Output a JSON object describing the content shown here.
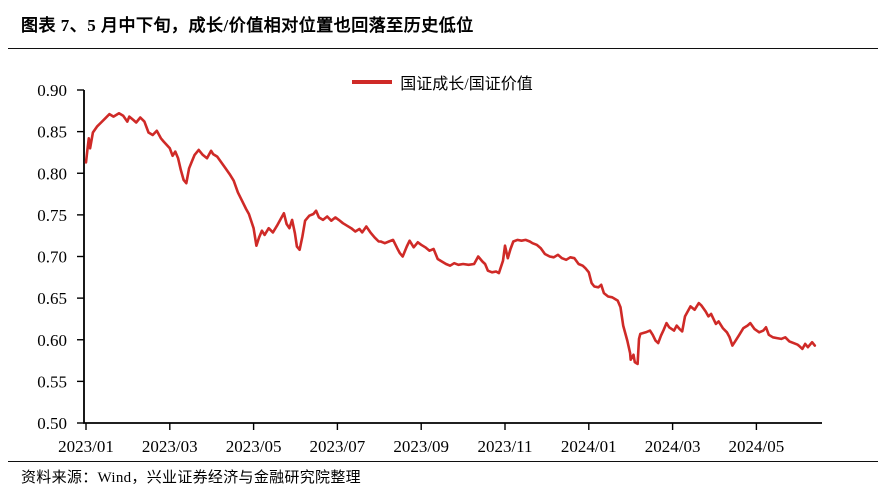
{
  "header": {
    "title": "图表 7、5 月中下旬，成长/价值相对位置也回落至历史低位"
  },
  "footer": {
    "source": "资料来源：Wind，兴业证券经济与金融研究院整理"
  },
  "chart_data": {
    "type": "line",
    "title": "",
    "xlabel": "",
    "ylabel": "",
    "grid": false,
    "legend_position": "top-center",
    "ylim": [
      0.5,
      0.9
    ],
    "y_ticks": [
      "0.90",
      "0.85",
      "0.80",
      "0.75",
      "0.70",
      "0.65",
      "0.60",
      "0.55",
      "0.50"
    ],
    "x_ticks": [
      "2023/01",
      "2023/03",
      "2023/05",
      "2023/07",
      "2023/09",
      "2023/11",
      "2024/01",
      "2024/03",
      "2024/05"
    ],
    "axis_color": "#000000",
    "series": [
      {
        "name": "国证成长/国证价值",
        "color": "#cf2a27",
        "points": [
          [
            "2023-01-01",
            0.813
          ],
          [
            "2023-01-02",
            0.828
          ],
          [
            "2023-01-03",
            0.842
          ],
          [
            "2023-01-04",
            0.83
          ],
          [
            "2023-01-06",
            0.849
          ],
          [
            "2023-01-09",
            0.856
          ],
          [
            "2023-01-12",
            0.861
          ],
          [
            "2023-01-15",
            0.866
          ],
          [
            "2023-01-18",
            0.871
          ],
          [
            "2023-01-21",
            0.868
          ],
          [
            "2023-01-25",
            0.872
          ],
          [
            "2023-01-28",
            0.869
          ],
          [
            "2023-01-31",
            0.862
          ],
          [
            "2023-02-02",
            0.868
          ],
          [
            "2023-02-05",
            0.864
          ],
          [
            "2023-02-07",
            0.861
          ],
          [
            "2023-02-10",
            0.867
          ],
          [
            "2023-02-13",
            0.862
          ],
          [
            "2023-02-16",
            0.849
          ],
          [
            "2023-02-19",
            0.846
          ],
          [
            "2023-02-22",
            0.851
          ],
          [
            "2023-02-25",
            0.842
          ],
          [
            "2023-02-27",
            0.838
          ],
          [
            "2023-03-01",
            0.83
          ],
          [
            "2023-03-03",
            0.821
          ],
          [
            "2023-03-05",
            0.826
          ],
          [
            "2023-03-07",
            0.818
          ],
          [
            "2023-03-09",
            0.804
          ],
          [
            "2023-03-11",
            0.792
          ],
          [
            "2023-03-13",
            0.788
          ],
          [
            "2023-03-15",
            0.806
          ],
          [
            "2023-03-17",
            0.814
          ],
          [
            "2023-03-19",
            0.822
          ],
          [
            "2023-03-22",
            0.828
          ],
          [
            "2023-03-25",
            0.822
          ],
          [
            "2023-03-28",
            0.818
          ],
          [
            "2023-03-31",
            0.827
          ],
          [
            "2023-04-02",
            0.823
          ],
          [
            "2023-04-05",
            0.82
          ],
          [
            "2023-04-08",
            0.813
          ],
          [
            "2023-04-11",
            0.806
          ],
          [
            "2023-04-14",
            0.799
          ],
          [
            "2023-04-17",
            0.791
          ],
          [
            "2023-04-20",
            0.777
          ],
          [
            "2023-04-23",
            0.767
          ],
          [
            "2023-04-26",
            0.757
          ],
          [
            "2023-04-28",
            0.751
          ],
          [
            "2023-05-01",
            0.734
          ],
          [
            "2023-05-03",
            0.713
          ],
          [
            "2023-05-05",
            0.723
          ],
          [
            "2023-05-07",
            0.731
          ],
          [
            "2023-05-09",
            0.726
          ],
          [
            "2023-05-12",
            0.734
          ],
          [
            "2023-05-15",
            0.729
          ],
          [
            "2023-05-18",
            0.737
          ],
          [
            "2023-05-21",
            0.746
          ],
          [
            "2023-05-23",
            0.752
          ],
          [
            "2023-05-25",
            0.739
          ],
          [
            "2023-05-27",
            0.734
          ],
          [
            "2023-05-29",
            0.744
          ],
          [
            "2023-05-31",
            0.728
          ],
          [
            "2023-06-02",
            0.712
          ],
          [
            "2023-06-04",
            0.708
          ],
          [
            "2023-06-06",
            0.724
          ],
          [
            "2023-06-08",
            0.743
          ],
          [
            "2023-06-11",
            0.749
          ],
          [
            "2023-06-14",
            0.751
          ],
          [
            "2023-06-16",
            0.755
          ],
          [
            "2023-06-18",
            0.747
          ],
          [
            "2023-06-21",
            0.744
          ],
          [
            "2023-06-24",
            0.748
          ],
          [
            "2023-06-27",
            0.743
          ],
          [
            "2023-06-30",
            0.747
          ],
          [
            "2023-07-02",
            0.744
          ],
          [
            "2023-07-05",
            0.74
          ],
          [
            "2023-07-08",
            0.737
          ],
          [
            "2023-07-11",
            0.734
          ],
          [
            "2023-07-14",
            0.73
          ],
          [
            "2023-07-17",
            0.733
          ],
          [
            "2023-07-19",
            0.729
          ],
          [
            "2023-07-22",
            0.736
          ],
          [
            "2023-07-25",
            0.729
          ],
          [
            "2023-07-28",
            0.723
          ],
          [
            "2023-07-31",
            0.718
          ],
          [
            "2023-08-02",
            0.718
          ],
          [
            "2023-08-05",
            0.716
          ],
          [
            "2023-08-08",
            0.718
          ],
          [
            "2023-08-11",
            0.72
          ],
          [
            "2023-08-14",
            0.71
          ],
          [
            "2023-08-16",
            0.704
          ],
          [
            "2023-08-18",
            0.7
          ],
          [
            "2023-08-21",
            0.712
          ],
          [
            "2023-08-23",
            0.719
          ],
          [
            "2023-08-26",
            0.711
          ],
          [
            "2023-08-29",
            0.717
          ],
          [
            "2023-09-01",
            0.714
          ],
          [
            "2023-09-04",
            0.711
          ],
          [
            "2023-09-07",
            0.707
          ],
          [
            "2023-09-10",
            0.709
          ],
          [
            "2023-09-13",
            0.697
          ],
          [
            "2023-09-16",
            0.694
          ],
          [
            "2023-09-19",
            0.691
          ],
          [
            "2023-09-22",
            0.689
          ],
          [
            "2023-09-25",
            0.692
          ],
          [
            "2023-09-28",
            0.69
          ],
          [
            "2023-10-01",
            0.691
          ],
          [
            "2023-10-05",
            0.69
          ],
          [
            "2023-10-09",
            0.691
          ],
          [
            "2023-10-12",
            0.7
          ],
          [
            "2023-10-15",
            0.694
          ],
          [
            "2023-10-17",
            0.691
          ],
          [
            "2023-10-19",
            0.683
          ],
          [
            "2023-10-22",
            0.681
          ],
          [
            "2023-10-25",
            0.682
          ],
          [
            "2023-10-27",
            0.68
          ],
          [
            "2023-10-30",
            0.695
          ],
          [
            "2023-11-01",
            0.713
          ],
          [
            "2023-11-03",
            0.698
          ],
          [
            "2023-11-05",
            0.709
          ],
          [
            "2023-11-07",
            0.718
          ],
          [
            "2023-11-10",
            0.72
          ],
          [
            "2023-11-13",
            0.719
          ],
          [
            "2023-11-16",
            0.72
          ],
          [
            "2023-11-19",
            0.718
          ],
          [
            "2023-11-21",
            0.716
          ],
          [
            "2023-11-24",
            0.714
          ],
          [
            "2023-11-27",
            0.71
          ],
          [
            "2023-11-30",
            0.703
          ],
          [
            "2023-12-03",
            0.7
          ],
          [
            "2023-12-06",
            0.699
          ],
          [
            "2023-12-09",
            0.702
          ],
          [
            "2023-12-12",
            0.698
          ],
          [
            "2023-12-15",
            0.696
          ],
          [
            "2023-12-18",
            0.699
          ],
          [
            "2023-12-21",
            0.698
          ],
          [
            "2023-12-24",
            0.691
          ],
          [
            "2023-12-27",
            0.689
          ],
          [
            "2023-12-29",
            0.686
          ],
          [
            "2024-01-01",
            0.681
          ],
          [
            "2024-01-03",
            0.668
          ],
          [
            "2024-01-05",
            0.664
          ],
          [
            "2024-01-08",
            0.663
          ],
          [
            "2024-01-10",
            0.666
          ],
          [
            "2024-01-12",
            0.656
          ],
          [
            "2024-01-15",
            0.652
          ],
          [
            "2024-01-18",
            0.651
          ],
          [
            "2024-01-20",
            0.649
          ],
          [
            "2024-01-22",
            0.647
          ],
          [
            "2024-01-24",
            0.639
          ],
          [
            "2024-01-26",
            0.617
          ],
          [
            "2024-01-29",
            0.599
          ],
          [
            "2024-01-31",
            0.584
          ],
          [
            "2024-02-01",
            0.576
          ],
          [
            "2024-02-03",
            0.582
          ],
          [
            "2024-02-04",
            0.573
          ],
          [
            "2024-02-06",
            0.571
          ],
          [
            "2024-02-07",
            0.601
          ],
          [
            "2024-02-08",
            0.607
          ],
          [
            "2024-02-12",
            0.609
          ],
          [
            "2024-02-15",
            0.611
          ],
          [
            "2024-02-17",
            0.606
          ],
          [
            "2024-02-19",
            0.599
          ],
          [
            "2024-02-21",
            0.596
          ],
          [
            "2024-02-23",
            0.605
          ],
          [
            "2024-02-25",
            0.612
          ],
          [
            "2024-02-27",
            0.62
          ],
          [
            "2024-02-29",
            0.615
          ],
          [
            "2024-03-02",
            0.611
          ],
          [
            "2024-03-04",
            0.617
          ],
          [
            "2024-03-06",
            0.613
          ],
          [
            "2024-03-08",
            0.61
          ],
          [
            "2024-03-10",
            0.628
          ],
          [
            "2024-03-14",
            0.64
          ],
          [
            "2024-03-17",
            0.636
          ],
          [
            "2024-03-20",
            0.644
          ],
          [
            "2024-03-22",
            0.641
          ],
          [
            "2024-03-25",
            0.634
          ],
          [
            "2024-03-27",
            0.628
          ],
          [
            "2024-03-29",
            0.631
          ],
          [
            "2024-03-31",
            0.624
          ],
          [
            "2024-04-02",
            0.619
          ],
          [
            "2024-04-04",
            0.622
          ],
          [
            "2024-04-07",
            0.614
          ],
          [
            "2024-04-10",
            0.609
          ],
          [
            "2024-04-12",
            0.603
          ],
          [
            "2024-04-14",
            0.593
          ],
          [
            "2024-04-16",
            0.598
          ],
          [
            "2024-04-19",
            0.606
          ],
          [
            "2024-04-22",
            0.614
          ],
          [
            "2024-04-25",
            0.617
          ],
          [
            "2024-04-27",
            0.62
          ],
          [
            "2024-04-30",
            0.613
          ],
          [
            "2024-05-03",
            0.609
          ],
          [
            "2024-05-06",
            0.611
          ],
          [
            "2024-05-08",
            0.615
          ],
          [
            "2024-05-10",
            0.606
          ],
          [
            "2024-05-13",
            0.603
          ],
          [
            "2024-05-16",
            0.602
          ],
          [
            "2024-05-19",
            0.601
          ],
          [
            "2024-05-22",
            0.603
          ],
          [
            "2024-05-25",
            0.598
          ],
          [
            "2024-05-28",
            0.596
          ],
          [
            "2024-05-31",
            0.594
          ],
          [
            "2024-06-02",
            0.592
          ],
          [
            "2024-06-04",
            0.589
          ],
          [
            "2024-06-06",
            0.595
          ],
          [
            "2024-06-08",
            0.591
          ],
          [
            "2024-06-11",
            0.597
          ],
          [
            "2024-06-13",
            0.593
          ]
        ]
      }
    ]
  }
}
